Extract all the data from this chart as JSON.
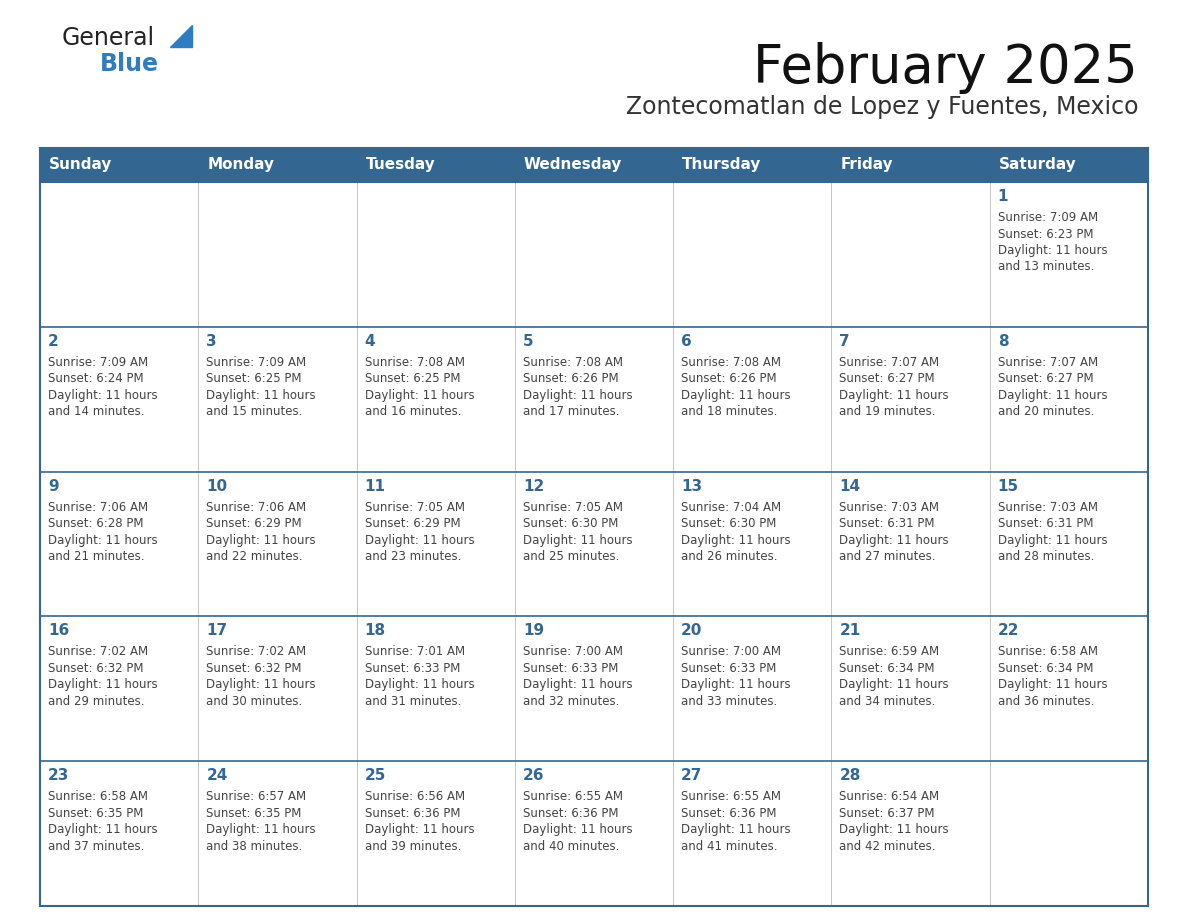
{
  "title": "February 2025",
  "subtitle": "Zontecomatlan de Lopez y Fuentes, Mexico",
  "days_of_week": [
    "Sunday",
    "Monday",
    "Tuesday",
    "Wednesday",
    "Thursday",
    "Friday",
    "Saturday"
  ],
  "header_bg": "#336791",
  "header_text": "#FFFFFF",
  "border_color": "#336791",
  "day_number_color": "#336791",
  "text_color": "#444444",
  "logo_general_color": "#222222",
  "logo_blue_color": "#2E7DC0",
  "logo_triangle_color": "#2E7DC0",
  "calendar_data": [
    {
      "day": 1,
      "col": 6,
      "row": 0,
      "sunrise": "7:09 AM",
      "sunset": "6:23 PM",
      "daylight_hours": 11,
      "daylight_minutes": 13
    },
    {
      "day": 2,
      "col": 0,
      "row": 1,
      "sunrise": "7:09 AM",
      "sunset": "6:24 PM",
      "daylight_hours": 11,
      "daylight_minutes": 14
    },
    {
      "day": 3,
      "col": 1,
      "row": 1,
      "sunrise": "7:09 AM",
      "sunset": "6:25 PM",
      "daylight_hours": 11,
      "daylight_minutes": 15
    },
    {
      "day": 4,
      "col": 2,
      "row": 1,
      "sunrise": "7:08 AM",
      "sunset": "6:25 PM",
      "daylight_hours": 11,
      "daylight_minutes": 16
    },
    {
      "day": 5,
      "col": 3,
      "row": 1,
      "sunrise": "7:08 AM",
      "sunset": "6:26 PM",
      "daylight_hours": 11,
      "daylight_minutes": 17
    },
    {
      "day": 6,
      "col": 4,
      "row": 1,
      "sunrise": "7:08 AM",
      "sunset": "6:26 PM",
      "daylight_hours": 11,
      "daylight_minutes": 18
    },
    {
      "day": 7,
      "col": 5,
      "row": 1,
      "sunrise": "7:07 AM",
      "sunset": "6:27 PM",
      "daylight_hours": 11,
      "daylight_minutes": 19
    },
    {
      "day": 8,
      "col": 6,
      "row": 1,
      "sunrise": "7:07 AM",
      "sunset": "6:27 PM",
      "daylight_hours": 11,
      "daylight_minutes": 20
    },
    {
      "day": 9,
      "col": 0,
      "row": 2,
      "sunrise": "7:06 AM",
      "sunset": "6:28 PM",
      "daylight_hours": 11,
      "daylight_minutes": 21
    },
    {
      "day": 10,
      "col": 1,
      "row": 2,
      "sunrise": "7:06 AM",
      "sunset": "6:29 PM",
      "daylight_hours": 11,
      "daylight_minutes": 22
    },
    {
      "day": 11,
      "col": 2,
      "row": 2,
      "sunrise": "7:05 AM",
      "sunset": "6:29 PM",
      "daylight_hours": 11,
      "daylight_minutes": 23
    },
    {
      "day": 12,
      "col": 3,
      "row": 2,
      "sunrise": "7:05 AM",
      "sunset": "6:30 PM",
      "daylight_hours": 11,
      "daylight_minutes": 25
    },
    {
      "day": 13,
      "col": 4,
      "row": 2,
      "sunrise": "7:04 AM",
      "sunset": "6:30 PM",
      "daylight_hours": 11,
      "daylight_minutes": 26
    },
    {
      "day": 14,
      "col": 5,
      "row": 2,
      "sunrise": "7:03 AM",
      "sunset": "6:31 PM",
      "daylight_hours": 11,
      "daylight_minutes": 27
    },
    {
      "day": 15,
      "col": 6,
      "row": 2,
      "sunrise": "7:03 AM",
      "sunset": "6:31 PM",
      "daylight_hours": 11,
      "daylight_minutes": 28
    },
    {
      "day": 16,
      "col": 0,
      "row": 3,
      "sunrise": "7:02 AM",
      "sunset": "6:32 PM",
      "daylight_hours": 11,
      "daylight_minutes": 29
    },
    {
      "day": 17,
      "col": 1,
      "row": 3,
      "sunrise": "7:02 AM",
      "sunset": "6:32 PM",
      "daylight_hours": 11,
      "daylight_minutes": 30
    },
    {
      "day": 18,
      "col": 2,
      "row": 3,
      "sunrise": "7:01 AM",
      "sunset": "6:33 PM",
      "daylight_hours": 11,
      "daylight_minutes": 31
    },
    {
      "day": 19,
      "col": 3,
      "row": 3,
      "sunrise": "7:00 AM",
      "sunset": "6:33 PM",
      "daylight_hours": 11,
      "daylight_minutes": 32
    },
    {
      "day": 20,
      "col": 4,
      "row": 3,
      "sunrise": "7:00 AM",
      "sunset": "6:33 PM",
      "daylight_hours": 11,
      "daylight_minutes": 33
    },
    {
      "day": 21,
      "col": 5,
      "row": 3,
      "sunrise": "6:59 AM",
      "sunset": "6:34 PM",
      "daylight_hours": 11,
      "daylight_minutes": 34
    },
    {
      "day": 22,
      "col": 6,
      "row": 3,
      "sunrise": "6:58 AM",
      "sunset": "6:34 PM",
      "daylight_hours": 11,
      "daylight_minutes": 36
    },
    {
      "day": 23,
      "col": 0,
      "row": 4,
      "sunrise": "6:58 AM",
      "sunset": "6:35 PM",
      "daylight_hours": 11,
      "daylight_minutes": 37
    },
    {
      "day": 24,
      "col": 1,
      "row": 4,
      "sunrise": "6:57 AM",
      "sunset": "6:35 PM",
      "daylight_hours": 11,
      "daylight_minutes": 38
    },
    {
      "day": 25,
      "col": 2,
      "row": 4,
      "sunrise": "6:56 AM",
      "sunset": "6:36 PM",
      "daylight_hours": 11,
      "daylight_minutes": 39
    },
    {
      "day": 26,
      "col": 3,
      "row": 4,
      "sunrise": "6:55 AM",
      "sunset": "6:36 PM",
      "daylight_hours": 11,
      "daylight_minutes": 40
    },
    {
      "day": 27,
      "col": 4,
      "row": 4,
      "sunrise": "6:55 AM",
      "sunset": "6:36 PM",
      "daylight_hours": 11,
      "daylight_minutes": 41
    },
    {
      "day": 28,
      "col": 5,
      "row": 4,
      "sunrise": "6:54 AM",
      "sunset": "6:37 PM",
      "daylight_hours": 11,
      "daylight_minutes": 42
    }
  ],
  "num_rows": 5,
  "figsize": [
    11.88,
    9.18
  ],
  "dpi": 100
}
